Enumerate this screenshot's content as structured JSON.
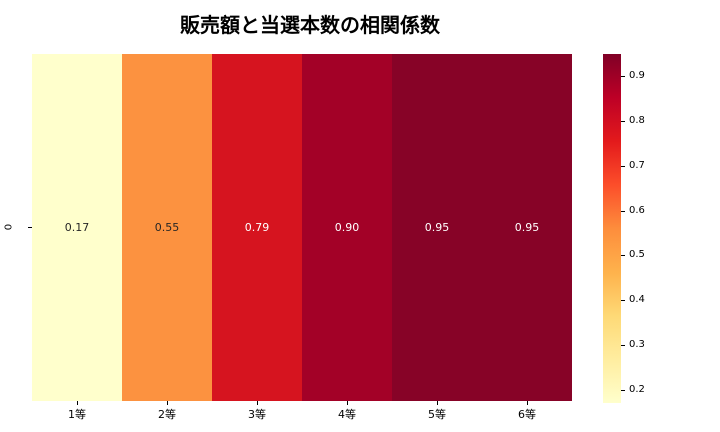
{
  "chart_data": {
    "type": "heatmap",
    "title": "販売額と当選本数の相関係数",
    "row_labels": [
      "0"
    ],
    "categories": [
      "1等",
      "2等",
      "3等",
      "4等",
      "5等",
      "6等"
    ],
    "values": [
      0.17,
      0.55,
      0.79,
      0.9,
      0.95,
      0.95
    ],
    "value_labels": [
      "0.17",
      "0.55",
      "0.79",
      "0.90",
      "0.95",
      "0.95"
    ],
    "cell_colors": [
      "#ffffcc",
      "#fc9240",
      "#d6141f",
      "#a30127",
      "#870327",
      "#870327"
    ],
    "cell_text_colors": [
      "#262626",
      "#262626",
      "#ffffff",
      "#ffffff",
      "#ffffff",
      "#ffffff"
    ],
    "grid": false,
    "legend_position": "right-colorbar",
    "colormap": {
      "name": "YlOrRd",
      "stops": [
        "#ffffcc",
        "#ffeda0",
        "#fed976",
        "#feb24c",
        "#fd8d3c",
        "#fc4e2a",
        "#e31a1c",
        "#bd0026",
        "#800026"
      ]
    },
    "colorbar": {
      "vmin": 0.17,
      "vmax": 0.95,
      "ticks": [
        0.2,
        0.3,
        0.4,
        0.5,
        0.6,
        0.7,
        0.8,
        0.9
      ],
      "tick_labels": [
        "0.2",
        "0.3",
        "0.4",
        "0.5",
        "0.6",
        "0.7",
        "0.8",
        "0.9"
      ]
    }
  }
}
